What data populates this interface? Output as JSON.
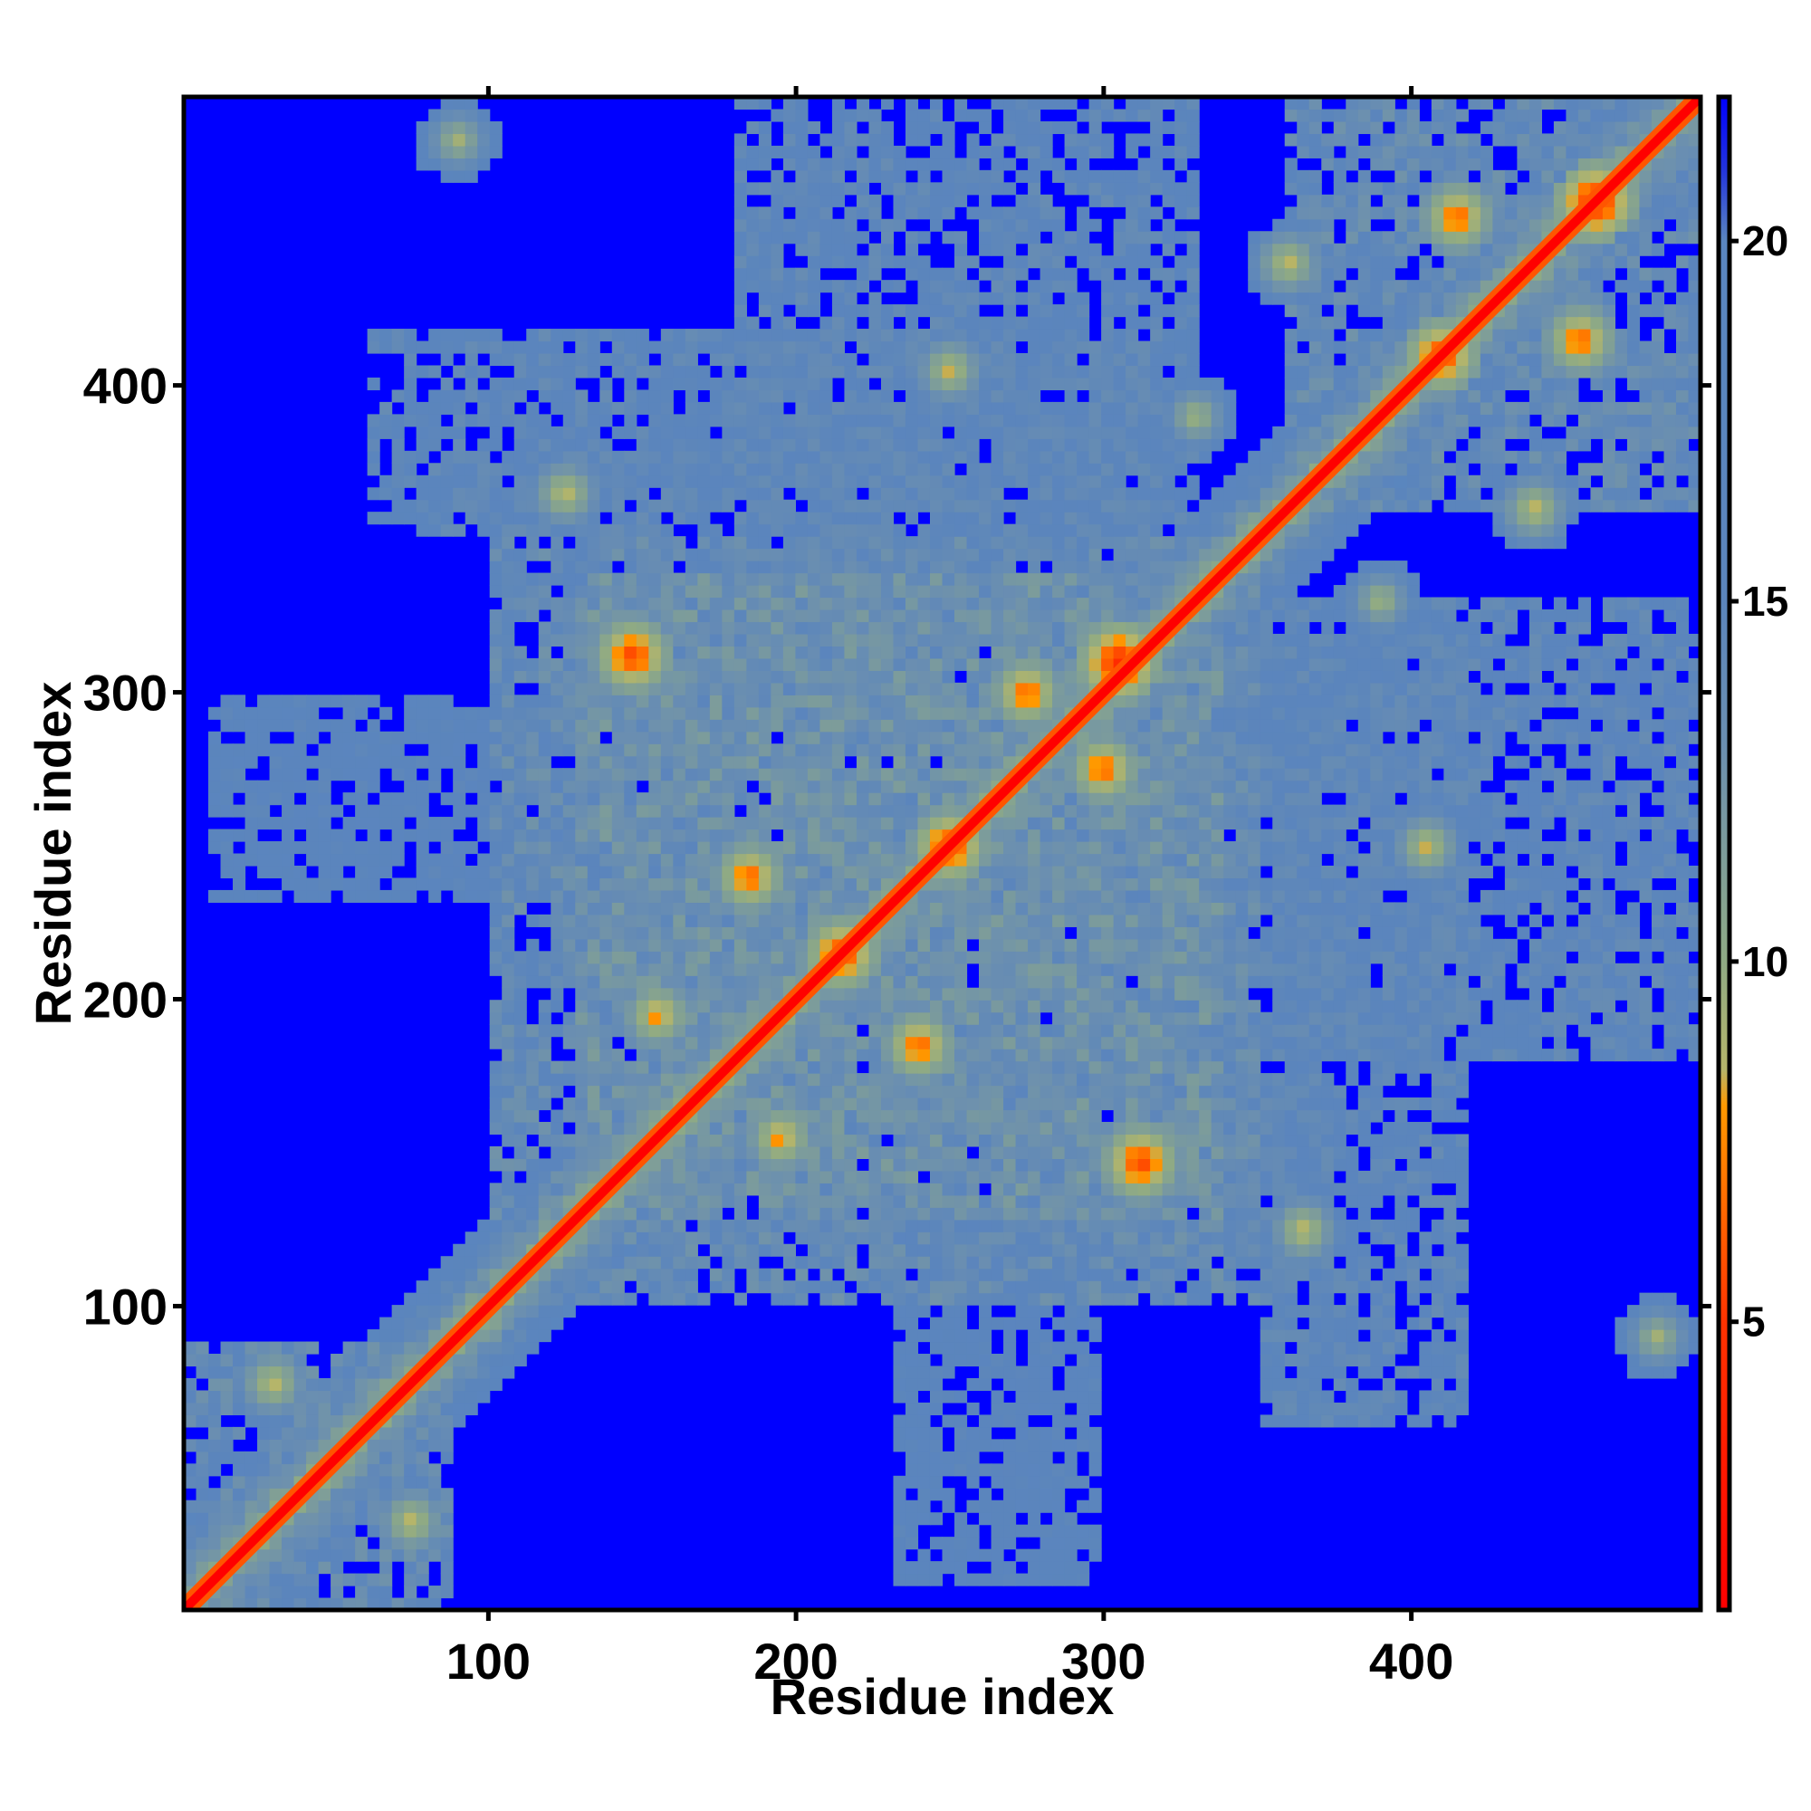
{
  "chart_data": {
    "type": "heatmap",
    "title": "",
    "xlabel": "Residue index",
    "ylabel": "Residue index",
    "xlim": [
      1,
      494
    ],
    "ylim": [
      1,
      494
    ],
    "x_ticks": [
      100,
      200,
      300,
      400
    ],
    "y_ticks": [
      100,
      200,
      300,
      400
    ],
    "colorbar": {
      "min": 1,
      "max": 22,
      "ticks": [
        5,
        10,
        15,
        20
      ],
      "stops": [
        {
          "value": 1,
          "color": "#ff0000"
        },
        {
          "value": 5,
          "color": "#ff3300"
        },
        {
          "value": 8,
          "color": "#ff9900"
        },
        {
          "value": 8.5,
          "color": "#b5b56a"
        },
        {
          "value": 10,
          "color": "#8faa84"
        },
        {
          "value": 13,
          "color": "#6b8fb0"
        },
        {
          "value": 15,
          "color": "#5b85bc"
        },
        {
          "value": 20,
          "color": "#5a86c0"
        },
        {
          "value": 21,
          "color": "#2233dd"
        },
        {
          "value": 22,
          "color": "#0000ff"
        }
      ]
    },
    "background_value": 22,
    "diagonal_band": {
      "center_value": 1,
      "edge_value": 6
    },
    "contact_regions": [
      {
        "x": [
          1,
          90
        ],
        "y": [
          1,
          90
        ],
        "value": 14
      },
      {
        "x": [
          100,
          350
        ],
        "y": [
          100,
          350
        ],
        "value": 14
      },
      {
        "x": [
          130,
          340
        ],
        "y": [
          130,
          340
        ],
        "value": 13
      },
      {
        "x": [
          360,
          494
        ],
        "y": [
          360,
          494
        ],
        "value": 14
      },
      {
        "x": [
          180,
          330
        ],
        "y": [
          330,
          494
        ],
        "value": 15
      },
      {
        "x": [
          330,
          494
        ],
        "y": [
          180,
          330
        ],
        "value": 15
      },
      {
        "x": [
          120,
          320
        ],
        "y": [
          280,
          420
        ],
        "value": 15
      },
      {
        "x": [
          280,
          420
        ],
        "y": [
          120,
          320
        ],
        "value": 15
      },
      {
        "x": [
          90,
          170
        ],
        "y": [
          350,
          380
        ],
        "value": 15
      },
      {
        "x": [
          350,
          380
        ],
        "y": [
          90,
          170
        ],
        "value": 15
      },
      {
        "x": [
          10,
          180
        ],
        "y": [
          230,
          300
        ],
        "value": 16
      },
      {
        "x": [
          230,
          300
        ],
        "y": [
          10,
          180
        ],
        "value": 16
      },
      {
        "x": [
          350,
          420
        ],
        "y": [
          60,
          120
        ],
        "value": 15
      },
      {
        "x": [
          60,
          120
        ],
        "y": [
          350,
          420
        ],
        "value": 15
      }
    ],
    "contact_hotspots": [
      {
        "x": 305,
        "y": 310,
        "value": 4
      },
      {
        "x": 312,
        "y": 147,
        "value": 5
      },
      {
        "x": 147,
        "y": 312,
        "value": 5
      },
      {
        "x": 460,
        "y": 460,
        "value": 4
      },
      {
        "x": 410,
        "y": 410,
        "value": 5
      },
      {
        "x": 250,
        "y": 250,
        "value": 5
      },
      {
        "x": 185,
        "y": 240,
        "value": 6
      },
      {
        "x": 240,
        "y": 185,
        "value": 6
      },
      {
        "x": 275,
        "y": 300,
        "value": 6
      },
      {
        "x": 300,
        "y": 275,
        "value": 6
      },
      {
        "x": 195,
        "y": 155,
        "value": 7
      },
      {
        "x": 155,
        "y": 195,
        "value": 7
      },
      {
        "x": 455,
        "y": 415,
        "value": 6
      },
      {
        "x": 415,
        "y": 455,
        "value": 6
      },
      {
        "x": 90,
        "y": 480,
        "value": 9
      },
      {
        "x": 480,
        "y": 90,
        "value": 9
      },
      {
        "x": 250,
        "y": 405,
        "value": 8
      },
      {
        "x": 405,
        "y": 250,
        "value": 8
      },
      {
        "x": 30,
        "y": 75,
        "value": 8
      },
      {
        "x": 75,
        "y": 30,
        "value": 8
      },
      {
        "x": 125,
        "y": 365,
        "value": 8
      },
      {
        "x": 365,
        "y": 125,
        "value": 8
      },
      {
        "x": 360,
        "y": 440,
        "value": 8
      },
      {
        "x": 440,
        "y": 360,
        "value": 8
      },
      {
        "x": 215,
        "y": 215,
        "value": 5
      },
      {
        "x": 330,
        "y": 390,
        "value": 9
      },
      {
        "x": 390,
        "y": 330,
        "value": 9
      }
    ]
  }
}
